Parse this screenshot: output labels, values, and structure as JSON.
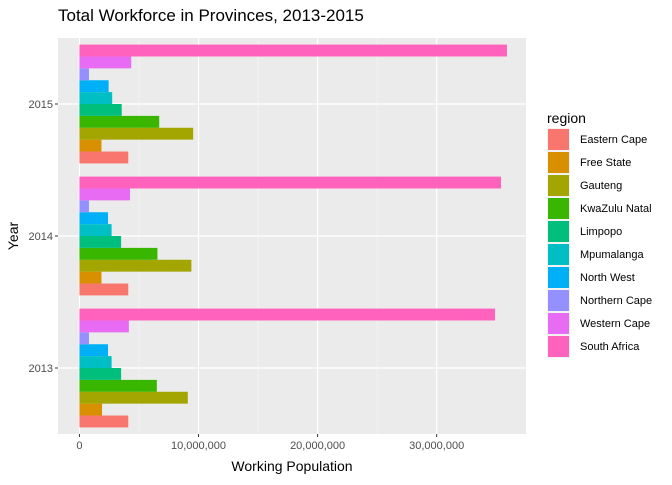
{
  "chart_data": {
    "type": "bar",
    "orientation": "horizontal",
    "title": "Total Workforce in Provinces, 2013-2015",
    "xlabel": "Working Population",
    "ylabel": "Year",
    "xlim": [
      -1800000,
      37500000
    ],
    "x_ticks": [
      0,
      10000000,
      20000000,
      30000000
    ],
    "x_tick_labels": [
      "0",
      "10,000,000",
      "20,000,000",
      "30,000,000"
    ],
    "categories": [
      "2013",
      "2014",
      "2015"
    ],
    "grid": true,
    "legend": {
      "title": "region",
      "position": "right"
    },
    "series": [
      {
        "name": "Eastern Cape",
        "color": "#F8766D",
        "values": [
          4100000,
          4100000,
          4100000
        ]
      },
      {
        "name": "Free State",
        "color": "#D89000",
        "values": [
          1900000,
          1850000,
          1850000
        ]
      },
      {
        "name": "Gauteng",
        "color": "#A3A500",
        "values": [
          9100000,
          9400000,
          9550000
        ]
      },
      {
        "name": "KwaZulu Natal",
        "color": "#39B600",
        "values": [
          6500000,
          6550000,
          6700000
        ]
      },
      {
        "name": "Limpopo",
        "color": "#00BF7D",
        "values": [
          3500000,
          3500000,
          3550000
        ]
      },
      {
        "name": "Mpumalanga",
        "color": "#00BFC4",
        "values": [
          2700000,
          2700000,
          2750000
        ]
      },
      {
        "name": "North West",
        "color": "#00B0F6",
        "values": [
          2400000,
          2400000,
          2450000
        ]
      },
      {
        "name": "Northern Cape",
        "color": "#9590FF",
        "values": [
          800000,
          800000,
          800000
        ]
      },
      {
        "name": "Western Cape",
        "color": "#E76BF3",
        "values": [
          4150000,
          4250000,
          4350000
        ]
      },
      {
        "name": "South Africa",
        "color": "#FF62BC",
        "values": [
          34900000,
          35400000,
          35900000
        ]
      }
    ]
  }
}
